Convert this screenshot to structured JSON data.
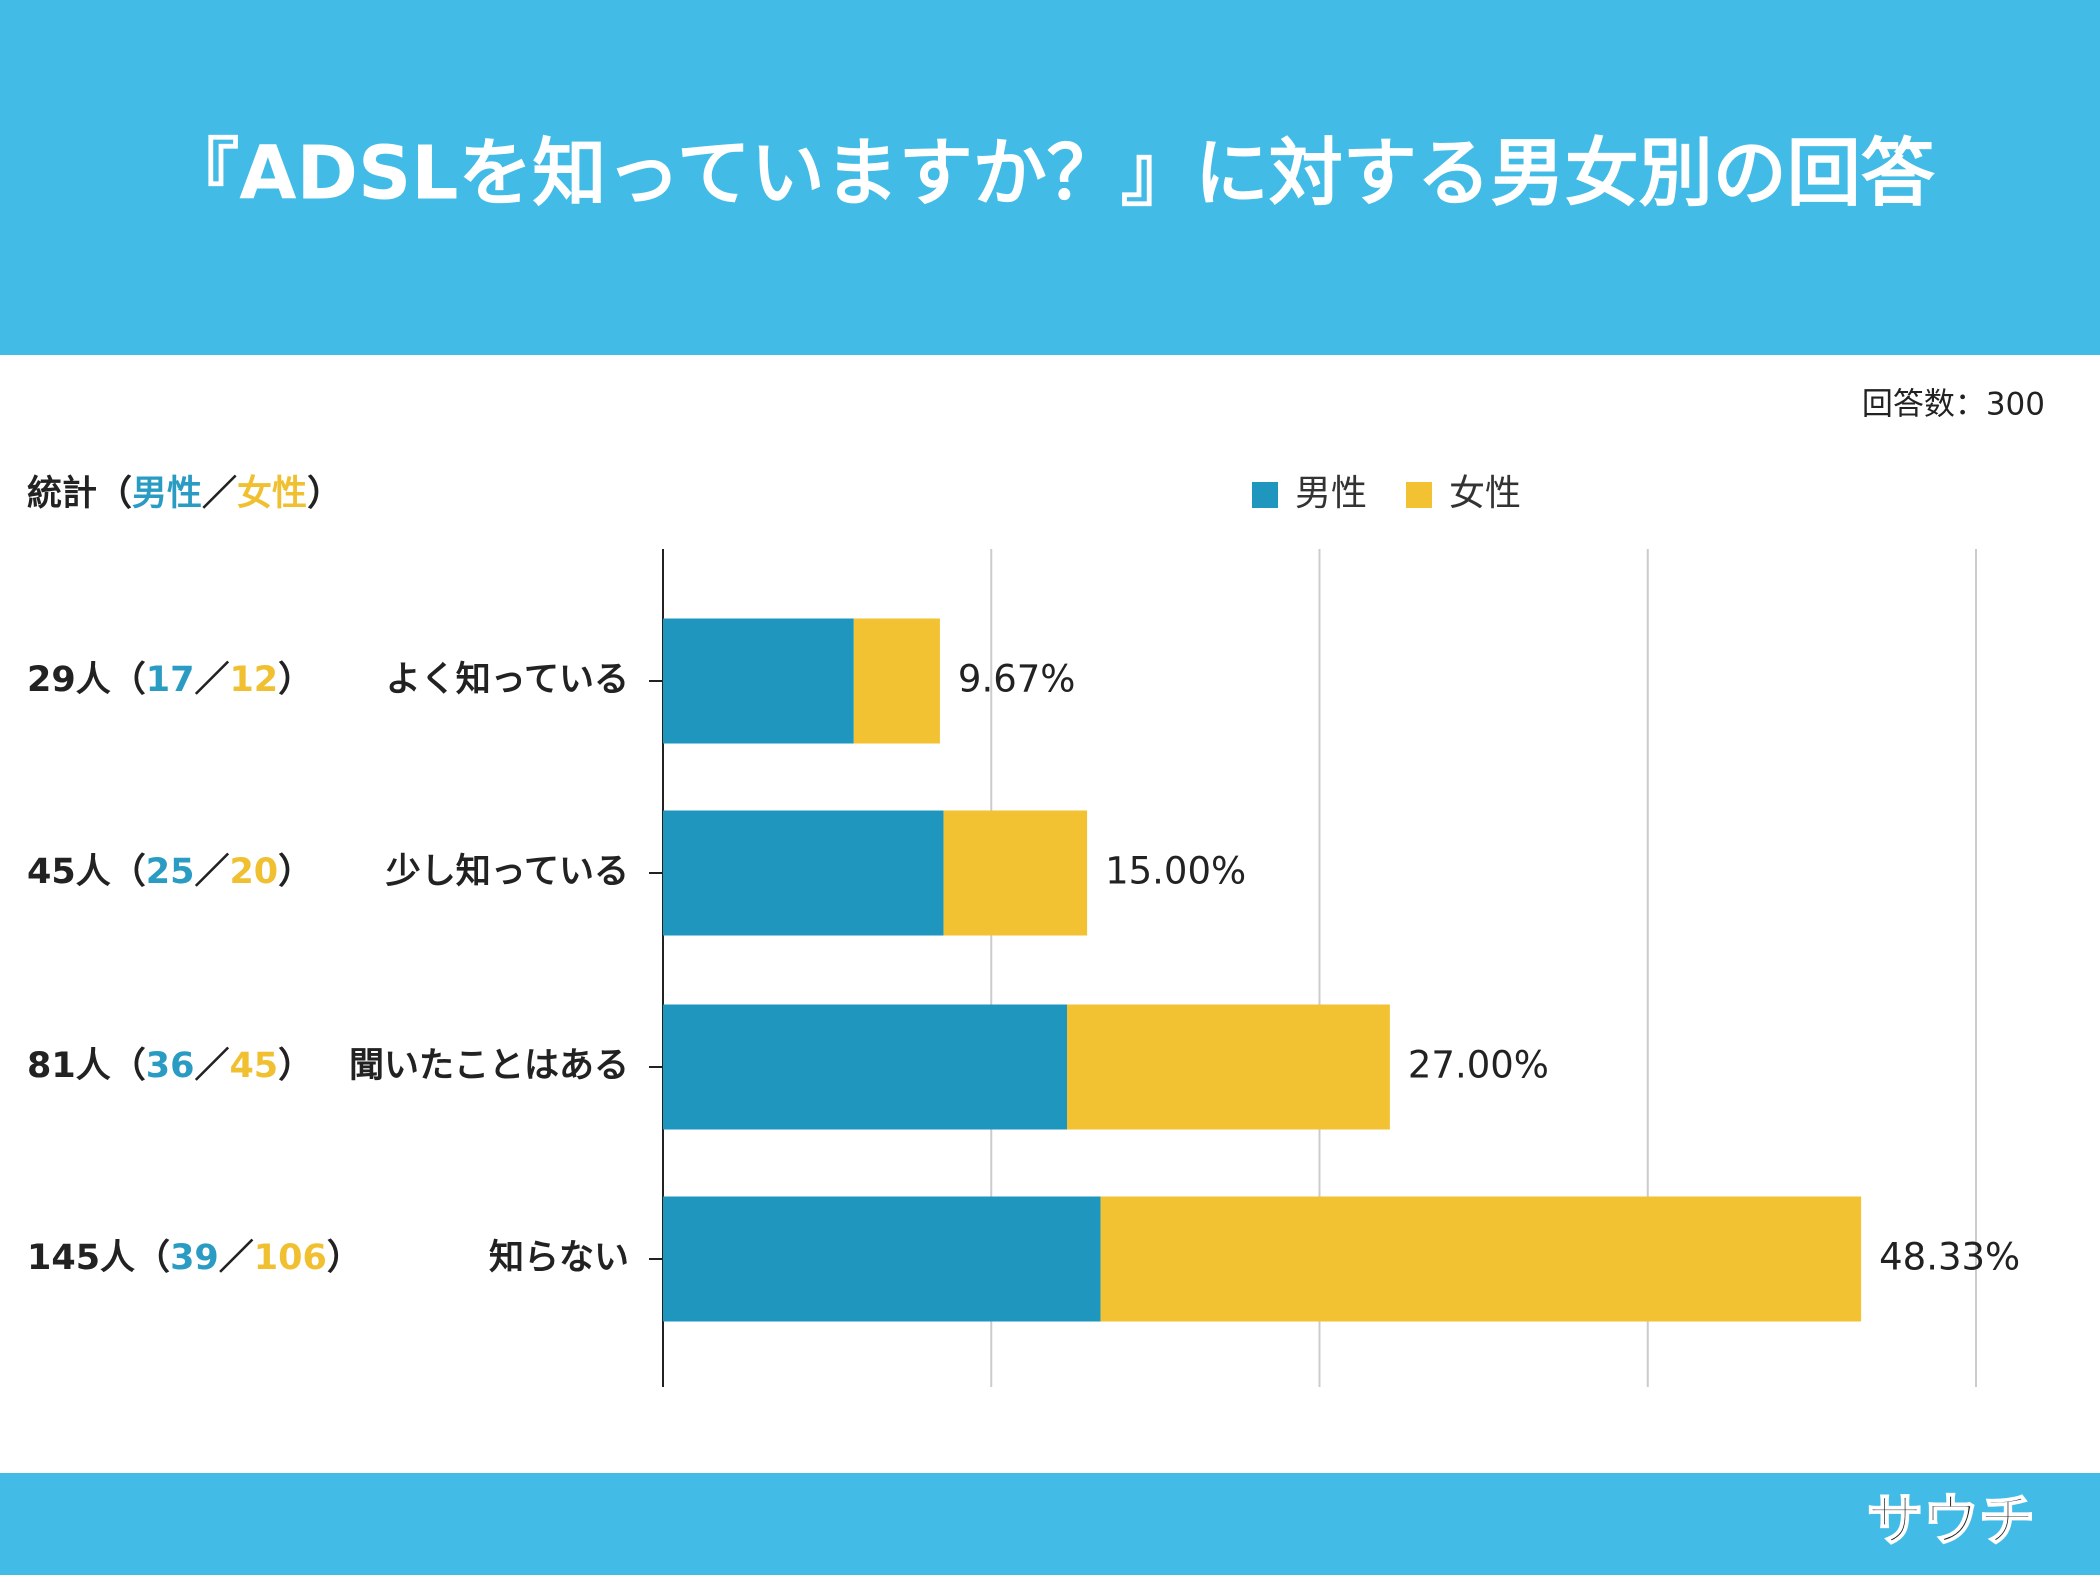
{
  "chart_data": {
    "type": "stacked_barh",
    "title": "『ADSLを知っていますか？』に対する男女別の回答",
    "note": "回答数：300",
    "categories": [
      "よく知っている",
      "少し知っている",
      "聞いたことはある",
      "知らない"
    ],
    "series": [
      {
        "name": "男性",
        "color": "#1e96be",
        "values": [
          14.53,
          21.37,
          30.77,
          33.33
        ]
      },
      {
        "name": "女性",
        "color": "#f2c233",
        "values": [
          6.56,
          10.93,
          24.59,
          57.92
        ]
      }
    ],
    "bar_labels": [
      "9.67%",
      "15.00%",
      "27.00%",
      "48.33%"
    ],
    "xlim": [
      0,
      100
    ],
    "xticks": [
      0,
      25,
      50,
      75,
      100
    ],
    "grid": true,
    "legend": "top",
    "stats": {
      "header": [
        "統計（",
        "男性",
        "／",
        "女性",
        "）"
      ],
      "rows": [
        [
          "29人（",
          "17",
          "／",
          "12",
          "）"
        ],
        [
          "45人（",
          "25",
          "／",
          "20",
          "）"
        ],
        [
          "81人（",
          "36",
          "／",
          "45",
          "）"
        ],
        [
          "145人（",
          "39",
          "／",
          "106",
          "）"
        ]
      ]
    },
    "logo": "サウチ"
  }
}
